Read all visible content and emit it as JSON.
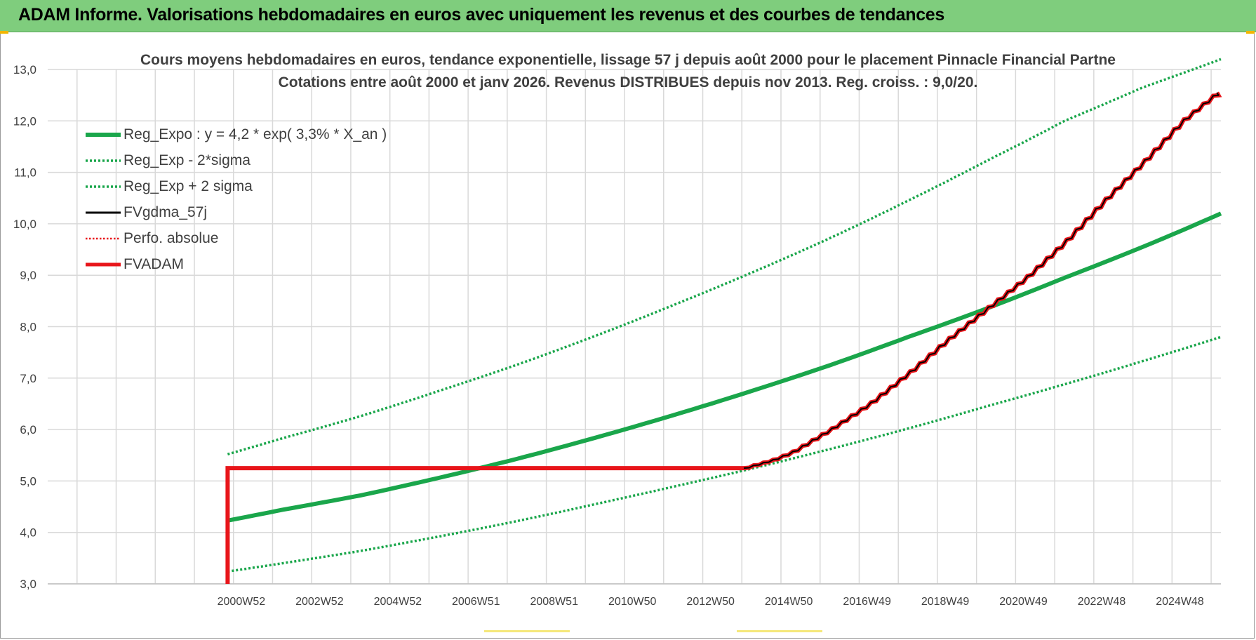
{
  "banner": {
    "title": "ADAM Informe. Valorisations hebdomadaires en euros avec uniquement les revenus et des courbes de tendances"
  },
  "colors": {
    "banner_bg": "#7fcd7d",
    "trend_green": "#1aa64b",
    "red": "#e8151a",
    "black": "#000000",
    "grid": "#d9d9d9",
    "axis_text": "#404040"
  },
  "chart_data": {
    "type": "line",
    "title": "Cours moyens hebdomadaires en euros, tendance exponentielle, lissage 57 j depuis août 2000 pour le placement Pinnacle Financial Partne",
    "subtitle": "Cotations entre août 2000 et janv 2026. Revenus DISTRIBUES depuis nov 2013. Reg. croiss. : 9,0/20.",
    "xlabel": "",
    "ylabel": "",
    "ylim": [
      3.0,
      13.0
    ],
    "y_ticks": [
      "3,0",
      "4,0",
      "5,0",
      "6,0",
      "7,0",
      "8,0",
      "9,0",
      "10,0",
      "11,0",
      "12,0",
      "13,0"
    ],
    "x_ticks": [
      "2000W52",
      "2002W52",
      "2004W52",
      "2006W51",
      "2008W51",
      "2010W50",
      "2012W50",
      "2014W50",
      "2016W49",
      "2018W49",
      "2020W49",
      "2022W48",
      "2024W48"
    ],
    "x_range": [
      1996.0,
      2026.0
    ],
    "grid": true,
    "legend_position": "top-left",
    "series": [
      {
        "name": "Reg_Expo : y = 4,2 * exp( 3,3% *  X_an )",
        "style": "solid-thick",
        "color": "#1aa64b",
        "x": [
          2000.6,
          2002,
          2004,
          2006,
          2008,
          2010,
          2012,
          2014,
          2016,
          2018,
          2020,
          2022,
          2024,
          2026
        ],
        "y": [
          4.23,
          4.44,
          4.72,
          5.06,
          5.43,
          5.84,
          6.28,
          6.75,
          7.25,
          7.8,
          8.35,
          8.95,
          9.55,
          10.2
        ]
      },
      {
        "name": "Reg_Exp - 2*sigma",
        "style": "dotted",
        "color": "#1aa64b",
        "x": [
          2000.6,
          2002,
          2004,
          2006,
          2008,
          2010,
          2012,
          2014,
          2016,
          2018,
          2020,
          2022,
          2024,
          2026
        ],
        "y": [
          3.24,
          3.4,
          3.64,
          3.92,
          4.22,
          4.55,
          4.89,
          5.24,
          5.62,
          6.02,
          6.45,
          6.88,
          7.33,
          7.8
        ]
      },
      {
        "name": "Reg_Exp + 2 sigma",
        "style": "dotted",
        "color": "#1aa64b",
        "x": [
          2000.6,
          2002,
          2004,
          2006,
          2008,
          2010,
          2012,
          2014,
          2016,
          2018,
          2020,
          2022,
          2024,
          2026
        ],
        "y": [
          5.52,
          5.83,
          6.26,
          6.75,
          7.26,
          7.82,
          8.42,
          9.05,
          9.72,
          10.45,
          11.22,
          12.0,
          12.65,
          13.2
        ]
      },
      {
        "name": "FVgdma_57j",
        "style": "solid",
        "color": "#000000",
        "x": [
          2000.6,
          2000.6,
          2013.8,
          2014.5,
          2015,
          2016,
          2017,
          2018,
          2019,
          2020,
          2021,
          2022,
          2023,
          2024,
          2025,
          2025.9
        ],
        "y": [
          3.0,
          5.25,
          5.25,
          5.4,
          5.55,
          6.0,
          6.5,
          7.1,
          7.75,
          8.35,
          8.95,
          9.65,
          10.45,
          11.2,
          12.0,
          12.55
        ]
      },
      {
        "name": "Perfo. absolue",
        "style": "dotted",
        "color": "#e8151a",
        "x": [],
        "y": []
      },
      {
        "name": "FVADAM",
        "style": "solid-thick",
        "color": "#e8151a",
        "x": [
          2000.6,
          2000.6,
          2013.8,
          2014.5,
          2015,
          2016,
          2017,
          2018,
          2019,
          2020,
          2021,
          2022,
          2023,
          2024,
          2025,
          2025.9
        ],
        "y": [
          3.0,
          5.25,
          5.25,
          5.4,
          5.55,
          6.0,
          6.5,
          7.1,
          7.75,
          8.35,
          8.95,
          9.65,
          10.45,
          11.2,
          12.0,
          12.55
        ]
      }
    ]
  }
}
